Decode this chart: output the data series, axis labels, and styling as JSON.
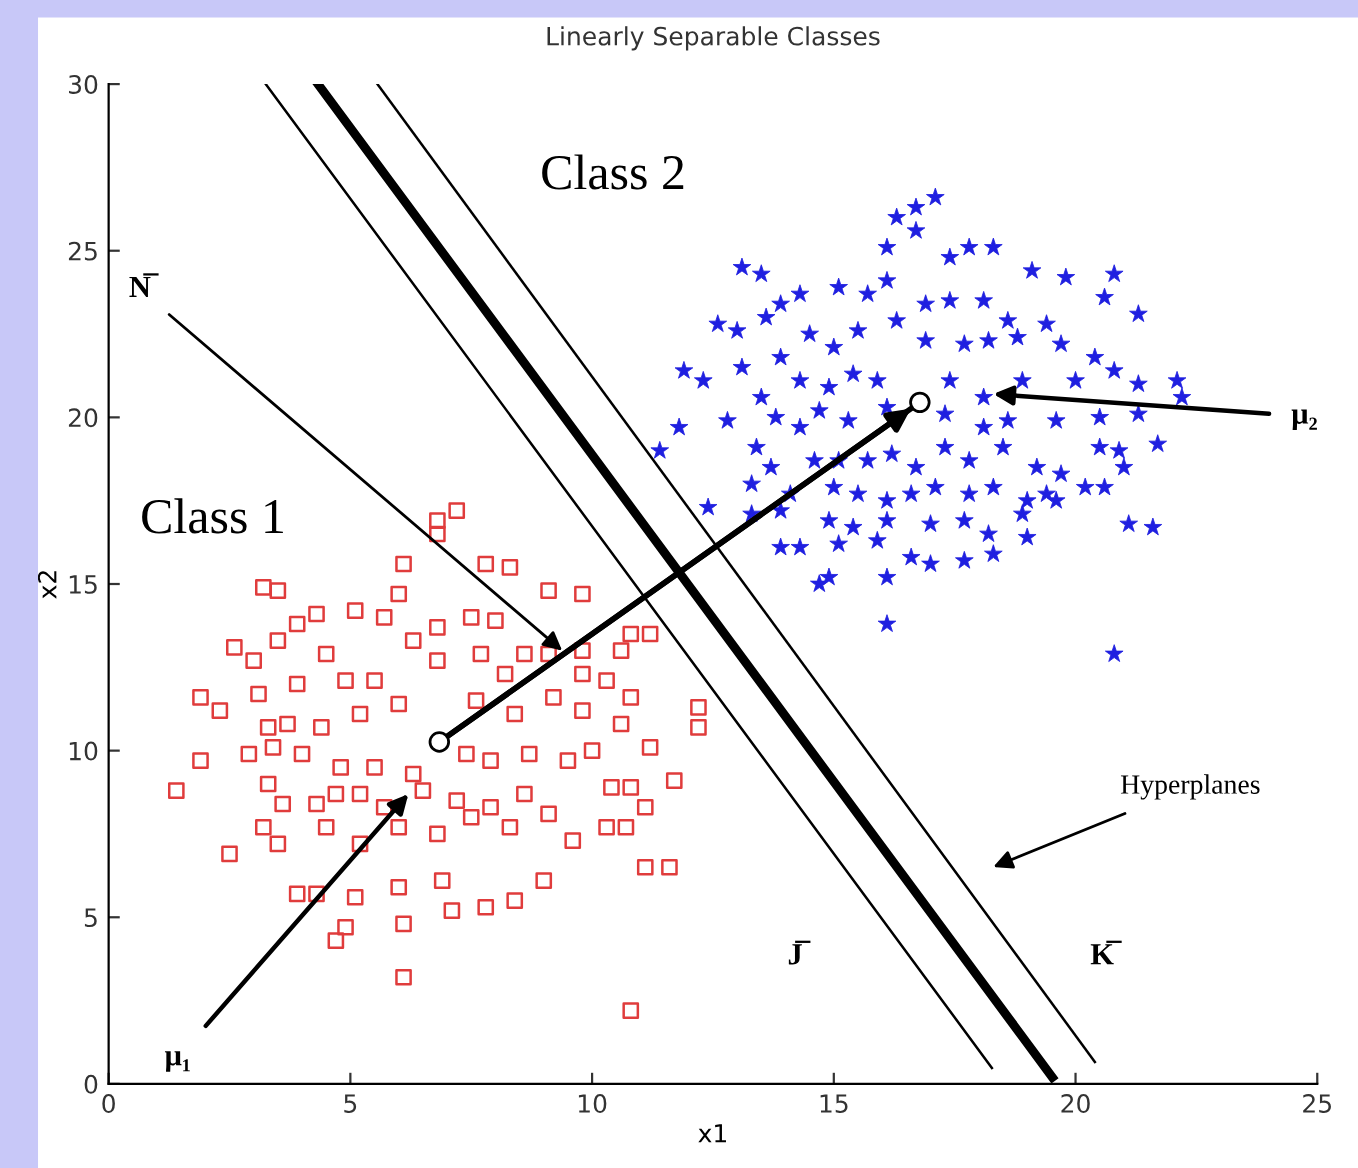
{
  "chart_data": {
    "type": "scatter",
    "title": "Linearly Separable Classes",
    "xlabel": "x1",
    "ylabel": "x2",
    "xlim": [
      0,
      25
    ],
    "ylim": [
      0,
      30
    ],
    "xticks": [
      0,
      5,
      10,
      15,
      20,
      25
    ],
    "yticks": [
      0,
      5,
      10,
      15,
      20,
      25,
      30
    ],
    "grid": false,
    "legend": false,
    "series": [
      {
        "marker": "square",
        "color": "#e03c3c",
        "x": [
          7.2,
          6.8,
          6.8,
          6.1,
          7.8,
          8.3,
          3.2,
          3.5,
          6.0,
          9.1,
          9.8,
          4.3,
          5.1,
          5.7,
          3.9,
          3.5,
          2.6,
          3.0,
          4.5,
          6.3,
          6.8,
          7.5,
          8.0,
          8.6,
          9.1,
          9.8,
          10.6,
          11.2,
          10.8,
          1.9,
          2.3,
          3.1,
          3.9,
          4.9,
          5.5,
          6.8,
          7.7,
          8.2,
          9.8,
          10.3,
          10.8,
          12.2,
          12.2,
          3.7,
          3.3,
          4.4,
          5.2,
          6.0,
          7.6,
          8.4,
          9.2,
          9.8,
          10.6,
          11.2,
          1.9,
          2.9,
          3.4,
          4.0,
          4.8,
          5.5,
          6.3,
          7.4,
          7.9,
          8.7,
          9.5,
          10.0,
          10.8,
          11.7,
          1.4,
          3.3,
          3.6,
          4.3,
          4.7,
          5.2,
          5.7,
          6.5,
          7.2,
          7.9,
          8.6,
          9.1,
          10.4,
          11.1,
          3.2,
          2.5,
          3.5,
          4.5,
          5.2,
          6.0,
          6.8,
          7.5,
          8.3,
          9.6,
          10.3,
          10.7,
          3.9,
          4.3,
          5.1,
          6.0,
          6.9,
          7.8,
          8.4,
          9.0,
          11.1,
          11.6,
          4.9,
          4.7,
          6.1,
          7.1,
          6.1,
          10.8
        ],
        "values": [
          17.2,
          16.9,
          16.5,
          15.6,
          15.6,
          15.5,
          14.9,
          14.8,
          14.7,
          14.8,
          14.7,
          14.1,
          14.2,
          14.0,
          13.8,
          13.3,
          13.1,
          12.7,
          12.9,
          13.3,
          13.7,
          14.0,
          13.9,
          12.9,
          12.9,
          13.0,
          13.0,
          13.5,
          13.5,
          11.6,
          11.2,
          11.7,
          12.0,
          12.1,
          12.1,
          12.7,
          12.9,
          12.3,
          12.3,
          12.1,
          11.6,
          11.3,
          10.7,
          10.8,
          10.7,
          10.7,
          11.1,
          11.4,
          11.5,
          11.1,
          11.6,
          11.2,
          10.8,
          10.1,
          9.7,
          9.9,
          10.1,
          9.9,
          9.5,
          9.5,
          9.3,
          9.9,
          9.7,
          9.9,
          9.7,
          10.0,
          8.9,
          9.1,
          8.8,
          9.0,
          8.4,
          8.4,
          8.7,
          8.7,
          8.3,
          8.8,
          8.5,
          8.3,
          8.7,
          8.1,
          8.9,
          8.3,
          7.7,
          6.9,
          7.2,
          7.7,
          7.2,
          7.7,
          7.5,
          8.0,
          7.7,
          7.3,
          7.7,
          7.7,
          5.7,
          5.7,
          5.6,
          5.9,
          6.1,
          5.3,
          5.5,
          6.1,
          6.5,
          6.5,
          4.7,
          4.3,
          4.8,
          5.2,
          3.2,
          2.2
        ]
      },
      {
        "marker": "star",
        "color": "#1f1fe0",
        "x": [
          17.1,
          16.7,
          16.3,
          16.7,
          16.1,
          17.4,
          17.8,
          18.3,
          19.1,
          19.8,
          20.8,
          13.1,
          13.5,
          14.3,
          15.1,
          15.7,
          16.1,
          16.9,
          17.4,
          18.1,
          18.6,
          19.4,
          20.6,
          21.3,
          12.6,
          13.0,
          13.6,
          13.9,
          14.5,
          15.0,
          15.5,
          16.3,
          16.9,
          17.7,
          18.2,
          18.8,
          19.7,
          20.4,
          20.8,
          11.9,
          12.3,
          13.1,
          13.9,
          14.3,
          14.9,
          15.4,
          15.9,
          17.4,
          18.1,
          18.9,
          20.0,
          21.3,
          22.1,
          22.2,
          11.8,
          12.8,
          13.5,
          13.8,
          14.3,
          14.7,
          15.3,
          16.1,
          17.3,
          18.1,
          18.6,
          19.6,
          20.5,
          21.3,
          21.7,
          11.4,
          13.4,
          13.7,
          14.6,
          15.1,
          15.7,
          16.2,
          16.7,
          17.3,
          17.8,
          18.5,
          19.2,
          19.7,
          20.5,
          20.9,
          21.0,
          12.4,
          13.3,
          14.1,
          15.0,
          15.5,
          16.1,
          16.6,
          17.1,
          17.8,
          18.3,
          19.0,
          19.4,
          20.2,
          20.6,
          13.3,
          13.9,
          14.9,
          15.4,
          16.1,
          17.0,
          17.7,
          18.2,
          18.9,
          19.6,
          21.1,
          21.6,
          13.9,
          14.3,
          15.1,
          15.9,
          16.6,
          17.0,
          17.7,
          18.3,
          19.0,
          14.7,
          14.9,
          16.1,
          16.1,
          20.8
        ],
        "values": [
          26.6,
          26.3,
          26.0,
          25.6,
          25.1,
          24.8,
          25.1,
          25.1,
          24.4,
          24.2,
          24.3,
          24.5,
          24.3,
          23.7,
          23.9,
          23.7,
          24.1,
          23.4,
          23.5,
          23.5,
          22.9,
          22.8,
          23.6,
          23.1,
          22.8,
          22.6,
          23.0,
          23.4,
          22.5,
          22.1,
          22.6,
          22.9,
          22.3,
          22.2,
          22.3,
          22.4,
          22.2,
          21.8,
          21.4,
          21.4,
          21.1,
          21.5,
          21.8,
          21.1,
          20.9,
          21.3,
          21.1,
          21.1,
          20.6,
          21.1,
          21.1,
          21.0,
          21.1,
          20.6,
          19.7,
          19.9,
          20.6,
          20.0,
          19.7,
          20.2,
          19.9,
          20.3,
          20.1,
          19.7,
          19.9,
          19.9,
          20.0,
          20.1,
          19.2,
          19.0,
          19.1,
          18.5,
          18.7,
          18.7,
          18.7,
          18.9,
          18.5,
          19.1,
          18.7,
          19.1,
          18.5,
          18.3,
          19.1,
          19.0,
          18.5,
          17.3,
          18.0,
          17.7,
          17.9,
          17.7,
          17.5,
          17.7,
          17.9,
          17.7,
          17.9,
          17.5,
          17.7,
          17.9,
          17.9,
          17.1,
          17.2,
          16.9,
          16.7,
          16.9,
          16.8,
          16.9,
          16.5,
          17.1,
          17.5,
          16.8,
          16.7,
          16.1,
          16.1,
          16.2,
          16.3,
          15.8,
          15.6,
          15.7,
          15.9,
          16.4,
          15.0,
          15.2,
          15.2,
          13.8,
          12.9
        ]
      },
      {
        "type": "line",
        "color": "#000000",
        "x": [
          3.25,
          18.27
        ],
        "values": [
          30,
          0.48
        ]
      },
      {
        "type": "line",
        "color": "#000000",
        "x": [
          4.33,
          19.52
        ],
        "values": [
          30,
          0.2
        ]
      },
      {
        "type": "line",
        "color": "#000000",
        "x": [
          5.56,
          20.4
        ],
        "values": [
          30,
          0.66
        ]
      },
      {
        "type": "line",
        "color": "#000000",
        "x": [
          6.84,
          16.78
        ],
        "values": [
          10.26,
          20.45
        ]
      },
      {
        "marker": "circle",
        "color": "#ffffff",
        "x": [
          6.84,
          16.78
        ],
        "values": [
          10.26,
          20.45
        ]
      }
    ],
    "annotations": [
      "Class 1",
      "Class 2",
      {
        "text": "N̅",
        "x": 9.38,
        "y": 13.0
      },
      {
        "text": "μ₁",
        "x": 6.2,
        "y": 8.7
      },
      {
        "text": "μ₂",
        "x": 18.3,
        "y": 20.7
      },
      "Hyperplanes",
      "J̅",
      "K̅"
    ]
  }
}
